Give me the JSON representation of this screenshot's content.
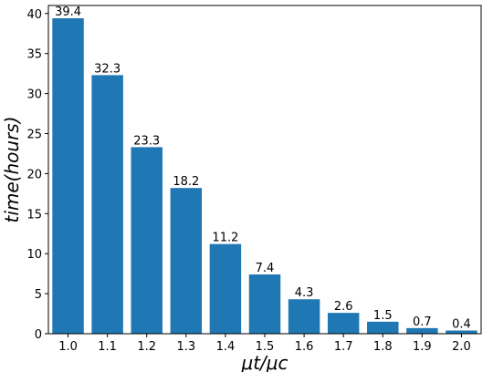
{
  "chart_data": {
    "type": "bar",
    "categories": [
      "1.0",
      "1.1",
      "1.2",
      "1.3",
      "1.4",
      "1.5",
      "1.6",
      "1.7",
      "1.8",
      "1.9",
      "2.0"
    ],
    "values": [
      39.4,
      32.3,
      23.3,
      18.2,
      11.2,
      7.4,
      4.3,
      2.6,
      1.5,
      0.7,
      0.4
    ],
    "data_labels": [
      "39.4",
      "32.3",
      "23.3",
      "18.2",
      "11.2",
      "7.4",
      "4.3",
      "2.6",
      "1.5",
      "0.7",
      "0.4"
    ],
    "yticks": [
      "0",
      "5",
      "10",
      "15",
      "20",
      "25",
      "30",
      "35",
      "40"
    ],
    "xlabel": "μt/μc",
    "ylabel": "time(hours)",
    "ylim": [
      0,
      41
    ],
    "grid": false,
    "bar_color": "#1f77b4"
  }
}
